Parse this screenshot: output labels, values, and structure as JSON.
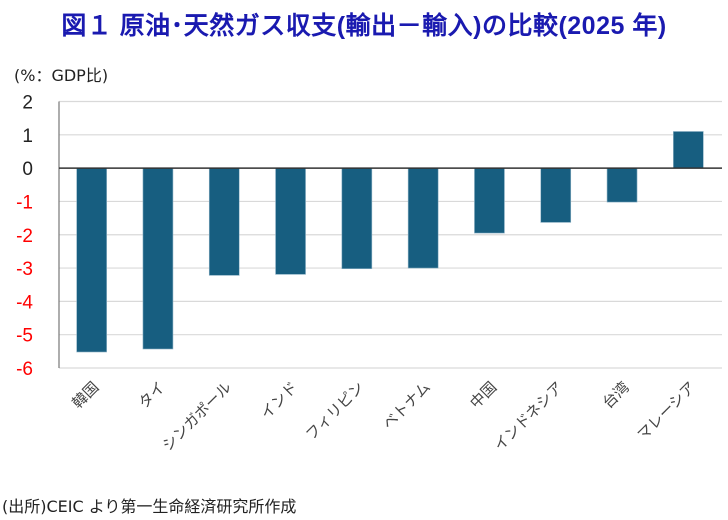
{
  "title": "図１ 原油･天然ガス収支(輸出－輸入)の比較(2025 年)",
  "source": "(出所)CEIC より第一生命経済研究所作成",
  "colors": {
    "bar": "#175e80",
    "negative_tick": "#ff0000",
    "positive_tick": "#222222",
    "title": "#1a1ab0"
  },
  "chart_data": {
    "type": "bar",
    "title": "図１ 原油･天然ガス収支(輸出－輸入)の比較(2025 年)",
    "ylabel": "(%：GDP比)",
    "xlabel": "",
    "categories": [
      "韓国",
      "タイ",
      "シンガポール",
      "インド",
      "フィリピン",
      "ベトナム",
      "中国",
      "インドネシア",
      "台湾",
      "マレーシア"
    ],
    "values": [
      -5.52,
      -5.43,
      -3.22,
      -3.19,
      -3.02,
      -3.0,
      -1.95,
      -1.63,
      -1.02,
      1.1
    ],
    "ylim": [
      -6,
      2
    ],
    "yticks": [
      "2",
      "1",
      "0",
      "-1",
      "-2",
      "-3",
      "-4",
      "-5",
      "-6"
    ],
    "grid": true,
    "legend": "none"
  }
}
